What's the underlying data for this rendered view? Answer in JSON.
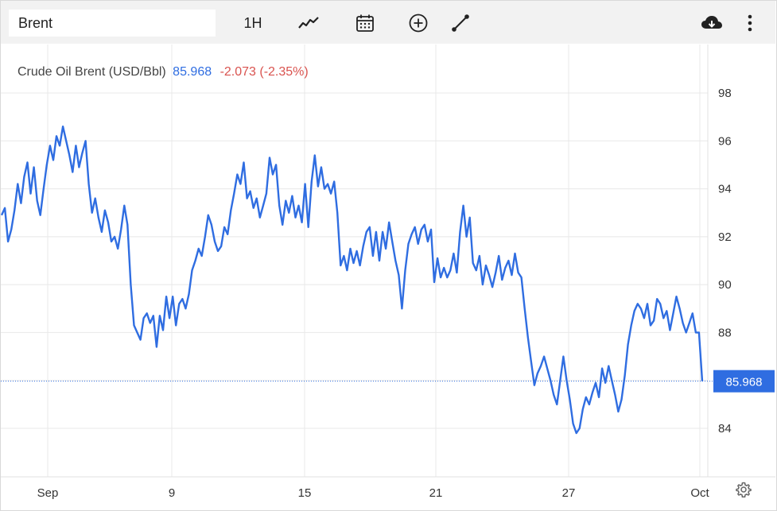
{
  "toolbar": {
    "symbol_value": "Brent",
    "interval_label": "1H",
    "icons": [
      "line-chart-icon",
      "calendar-icon",
      "plus-circle-icon",
      "draw-line-icon",
      "cloud-download-icon",
      "more-vertical-icon",
      "settings-gear-icon"
    ]
  },
  "legend": {
    "name": "Crude Oil Brent (USD/Bbl)",
    "price": "85.968",
    "change": "-2.073 (-2.35%)"
  },
  "colors": {
    "line": "#2f6de1",
    "price_tag_bg": "#2f6de1",
    "grid": "#e8e8e8",
    "change_negative": "#d9534f"
  },
  "chart_data": {
    "type": "line",
    "title": "Crude Oil Brent (USD/Bbl)",
    "xlabel": "",
    "ylabel": "",
    "ylim": [
      82,
      99.5
    ],
    "y_ticks": [
      "84",
      "86",
      "88",
      "90",
      "92",
      "94",
      "96",
      "98"
    ],
    "x_ticks": [
      "Sep",
      "9",
      "15",
      "21",
      "27",
      "Oct"
    ],
    "last_price_label": "85.968",
    "grid": true,
    "series": [
      {
        "values": [
          92.9,
          93.2,
          91.8,
          92.3,
          93.1,
          94.2,
          93.4,
          94.5,
          95.1,
          93.8,
          94.9,
          93.5,
          92.9,
          94.0,
          95.0,
          95.8,
          95.2,
          96.2,
          95.8,
          96.6,
          96.0,
          95.4,
          94.7,
          95.8,
          94.9,
          95.5,
          96.0,
          94.2,
          93.0,
          93.6,
          92.8,
          92.2,
          93.1,
          92.6,
          91.8,
          92.0,
          91.5,
          92.3,
          93.3,
          92.5,
          90.0,
          88.3,
          88.0,
          87.7,
          88.6,
          88.8,
          88.4,
          88.7,
          87.4,
          88.7,
          88.1,
          89.5,
          88.6,
          89.5,
          88.3,
          89.2,
          89.4,
          89.0,
          89.6,
          90.6,
          91.0,
          91.5,
          91.2,
          92.0,
          92.9,
          92.5,
          91.8,
          91.4,
          91.6,
          92.4,
          92.1,
          93.1,
          93.8,
          94.6,
          94.2,
          95.1,
          93.6,
          93.9,
          93.2,
          93.6,
          92.8,
          93.3,
          93.8,
          95.3,
          94.6,
          95.0,
          93.3,
          92.5,
          93.5,
          93.0,
          93.7,
          92.8,
          93.3,
          92.6,
          94.2,
          92.4,
          94.3,
          95.4,
          94.1,
          94.9,
          94.0,
          94.2,
          93.8,
          94.3,
          93.0,
          90.8,
          91.2,
          90.6,
          91.5,
          90.9,
          91.4,
          90.8,
          91.6,
          92.2,
          92.4,
          91.2,
          92.2,
          91.0,
          92.2,
          91.5,
          92.6,
          91.8,
          91.0,
          90.4,
          89.0,
          90.6,
          91.7,
          92.1,
          92.4,
          91.7,
          92.3,
          92.5,
          91.8,
          92.3,
          90.1,
          91.1,
          90.3,
          90.7,
          90.3,
          90.6,
          91.3,
          90.5,
          92.2,
          93.3,
          92.0,
          92.8,
          90.9,
          90.6,
          91.2,
          90.0,
          90.8,
          90.4,
          89.9,
          90.5,
          91.2,
          90.2,
          90.7,
          91.0,
          90.4,
          91.3,
          90.5,
          90.3,
          89.0,
          87.8,
          86.8,
          85.8,
          86.3,
          86.6,
          87.0,
          86.5,
          86.0,
          85.4,
          85.0,
          86.0,
          87.0,
          86.0,
          85.2,
          84.2,
          83.8,
          84.0,
          84.8,
          85.3,
          85.0,
          85.5,
          85.9,
          85.3,
          86.5,
          85.9,
          86.6,
          86.0,
          85.4,
          84.7,
          85.2,
          86.2,
          87.5,
          88.3,
          88.9,
          89.2,
          89.0,
          88.6,
          89.2,
          88.3,
          88.5,
          89.4,
          89.2,
          88.6,
          88.9,
          88.1,
          88.8,
          89.5,
          89.0,
          88.4,
          88.0,
          88.4,
          88.8,
          88.0,
          88.0,
          85.968
        ]
      }
    ]
  }
}
